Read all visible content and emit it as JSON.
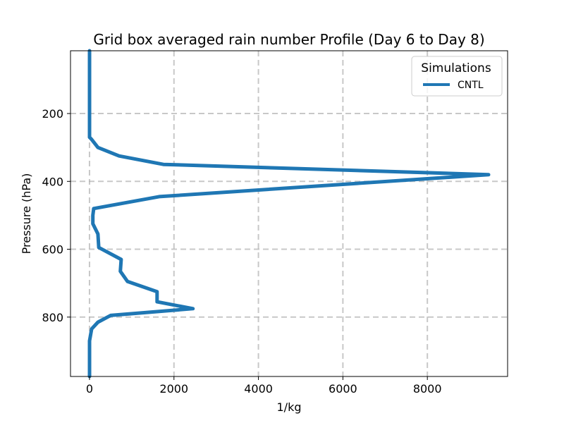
{
  "chart_data": {
    "type": "line",
    "title": "Grid box averaged rain number Profile (Day 6 to Day 8)",
    "xlabel": "1/kg",
    "ylabel": "Pressure (hPa)",
    "xlim": [
      -450,
      9900
    ],
    "ylim": [
      975,
      15
    ],
    "y_inverted": true,
    "grid": true,
    "xticks": [
      0,
      2000,
      4000,
      6000,
      8000
    ],
    "yticks": [
      200,
      400,
      600,
      800
    ],
    "legend": {
      "title": "Simulations",
      "position": "top-right"
    },
    "series": [
      {
        "name": "CNTL",
        "color": "#1f77b4",
        "points": [
          [
            0,
            15
          ],
          [
            0,
            50
          ],
          [
            0,
            100
          ],
          [
            0,
            150
          ],
          [
            0,
            200
          ],
          [
            0,
            250
          ],
          [
            0,
            270
          ],
          [
            40,
            275
          ],
          [
            200,
            300
          ],
          [
            700,
            325
          ],
          [
            1750,
            350
          ],
          [
            9450,
            380
          ],
          [
            1650,
            445
          ],
          [
            100,
            480
          ],
          [
            80,
            500
          ],
          [
            80,
            525
          ],
          [
            200,
            555
          ],
          [
            220,
            595
          ],
          [
            750,
            630
          ],
          [
            730,
            665
          ],
          [
            900,
            695
          ],
          [
            1600,
            725
          ],
          [
            1600,
            755
          ],
          [
            2450,
            775
          ],
          [
            500,
            795
          ],
          [
            200,
            815
          ],
          [
            50,
            835
          ],
          [
            0,
            870
          ],
          [
            0,
            900
          ],
          [
            0,
            975
          ]
        ]
      }
    ]
  }
}
